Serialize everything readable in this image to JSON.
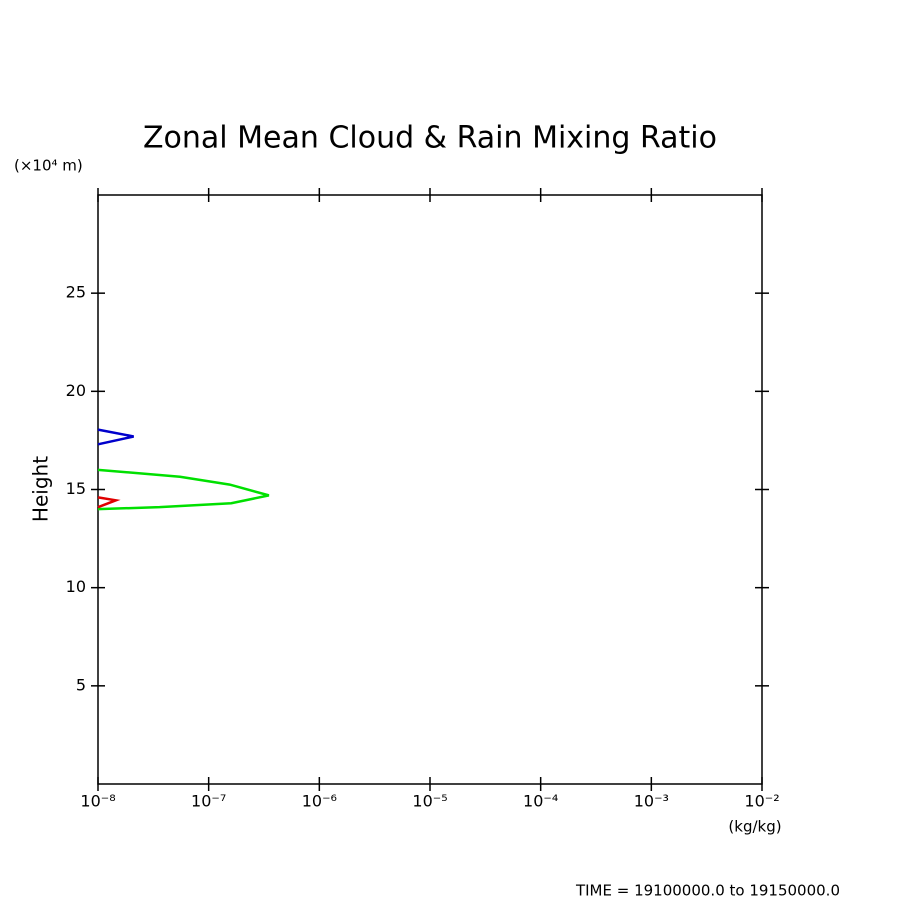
{
  "chart_data": {
    "type": "line",
    "title": "Zonal Mean Cloud & Rain Mixing Ratio",
    "y_unit_label": "(×10⁴ m)",
    "ylabel": "Height",
    "x_unit_label": "(kg/kg)",
    "footer": "TIME = 19100000.0 to 19150000.0",
    "xscale": "log",
    "xlim": [
      1e-08,
      0.01
    ],
    "xticks": [
      {
        "value": 1e-08,
        "label": "10⁻⁸"
      },
      {
        "value": 1e-07,
        "label": "10⁻⁷"
      },
      {
        "value": 1e-06,
        "label": "10⁻⁶"
      },
      {
        "value": 1e-05,
        "label": "10⁻⁵"
      },
      {
        "value": 0.0001,
        "label": "10⁻⁴"
      },
      {
        "value": 0.001,
        "label": "10⁻³"
      },
      {
        "value": 0.01,
        "label": "10⁻²"
      }
    ],
    "ylim": [
      0,
      30
    ],
    "yticks": [
      5,
      10,
      15,
      20,
      25
    ],
    "series": [
      {
        "color": "#00e000",
        "x": [
          1e-08,
          5.5e-08,
          1.55e-07,
          3.5e-07,
          1.6e-07,
          3.6e-08,
          1e-08
        ],
        "values": [
          16.0,
          15.65,
          15.25,
          14.7,
          14.3,
          14.1,
          14.0
        ]
      },
      {
        "color": "#e00000",
        "x": [
          1e-08,
          1.45e-08,
          1e-08
        ],
        "values": [
          14.6,
          14.45,
          14.1
        ]
      },
      {
        "color": "#0000cc",
        "x": [
          1e-08,
          2.1e-08,
          1e-08
        ],
        "values": [
          18.05,
          17.7,
          17.3
        ]
      }
    ]
  }
}
